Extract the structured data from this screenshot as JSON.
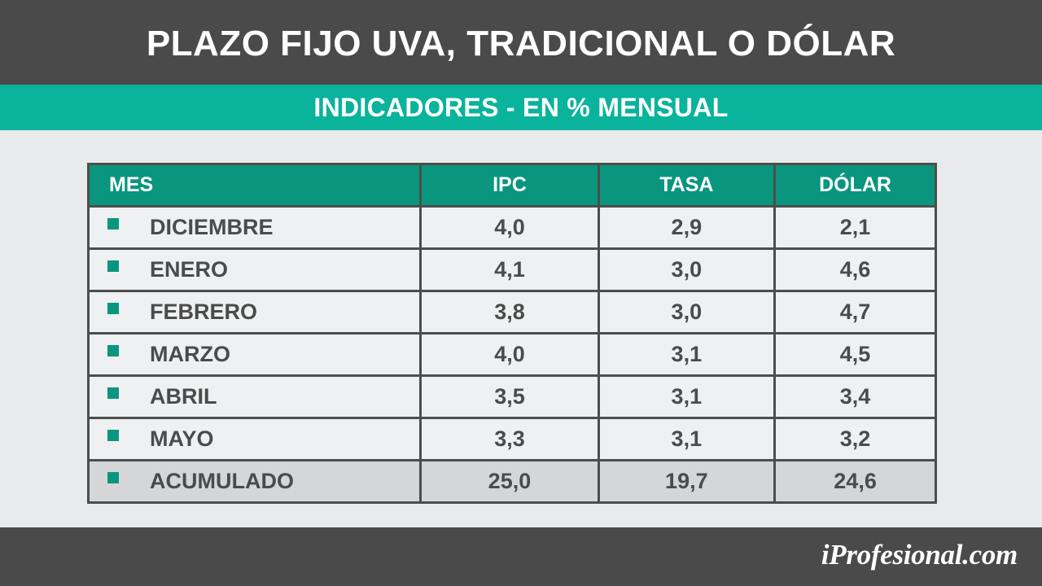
{
  "header": {
    "title": "PLAZO FIJO UVA, TRADICIONAL O DÓLAR",
    "subtitle": "INDICADORES - EN % MENSUAL"
  },
  "chart_data": {
    "type": "table",
    "columns": [
      "MES",
      "IPC",
      "TASA",
      "DÓLAR"
    ],
    "rows": [
      {
        "mes": "DICIEMBRE",
        "ipc": "4,0",
        "tasa": "2,9",
        "dolar": "2,1"
      },
      {
        "mes": "ENERO",
        "ipc": "4,1",
        "tasa": "3,0",
        "dolar": "4,6"
      },
      {
        "mes": "FEBRERO",
        "ipc": "3,8",
        "tasa": "3,0",
        "dolar": "4,7"
      },
      {
        "mes": "MARZO",
        "ipc": "4,0",
        "tasa": "3,1",
        "dolar": "4,5"
      },
      {
        "mes": "ABRIL",
        "ipc": "3,5",
        "tasa": "3,1",
        "dolar": "3,4"
      },
      {
        "mes": "MAYO",
        "ipc": "3,3",
        "tasa": "3,1",
        "dolar": "3,2"
      }
    ],
    "total": {
      "mes": "ACUMULADO",
      "ipc": "25,0",
      "tasa": "19,7",
      "dolar": "24,6"
    }
  },
  "footer": {
    "logo_text": "iProfesional.com"
  },
  "colors": {
    "dark_bar": "#4a4a4b",
    "accent_teal": "#0ab39b",
    "header_green": "#0a967e",
    "cell_bg": "#eef0f1",
    "total_bg": "#d5d6d7",
    "page_bg": "#e9eaeb"
  }
}
